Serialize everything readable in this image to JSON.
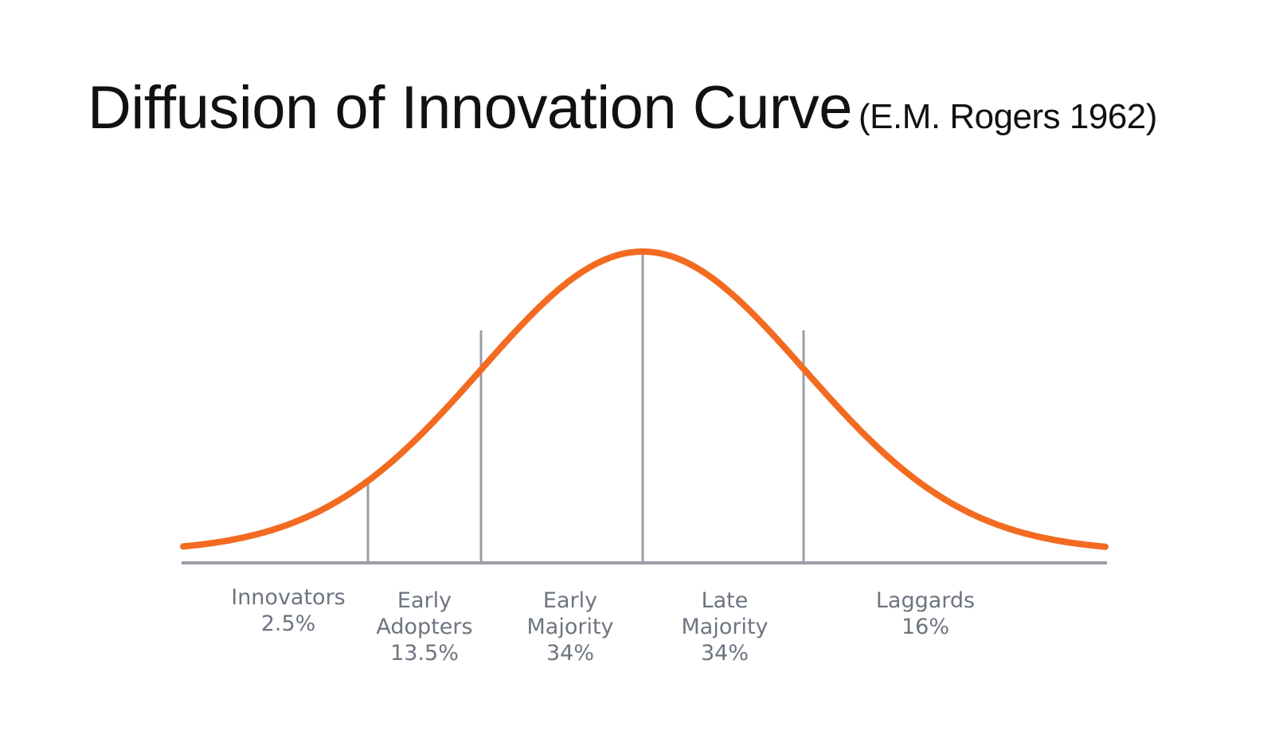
{
  "title": {
    "main": "Diffusion of Innovation Curve",
    "citation": "(E.M. Rogers 1962)"
  },
  "colors": {
    "curve": "#f26b21",
    "lines": "#9a9ea7",
    "label_text": "#6e7480",
    "title_text": "#111111"
  },
  "segments": [
    {
      "lines": [
        "Innovators",
        "2.5%"
      ]
    },
    {
      "lines": [
        "Early",
        "Adopters",
        "13.5%"
      ]
    },
    {
      "lines": [
        "Early",
        "Majority",
        "34%"
      ]
    },
    {
      "lines": [
        "Late",
        "Majority",
        "34%"
      ]
    },
    {
      "lines": [
        "Laggards",
        "16%"
      ]
    }
  ]
}
